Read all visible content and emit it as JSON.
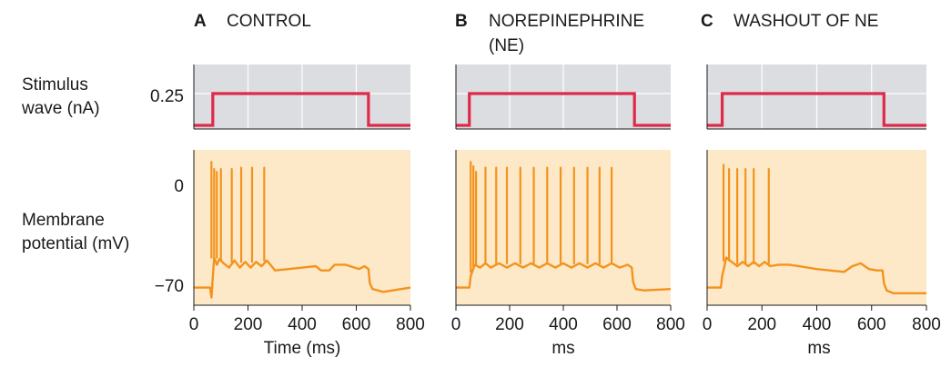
{
  "labels": {
    "stimulus_row": [
      "Stimulus",
      "wave (nA)"
    ],
    "membrane_row": [
      "Membrane",
      "potential (mV)"
    ],
    "stim_tick": "0.25",
    "mv_ticks": [
      "0",
      "−70"
    ]
  },
  "colors": {
    "stim_bg": "#dcdde0",
    "vm_bg": "#fde9c8",
    "stimulus": "#e0284a",
    "membrane": "#f3931d",
    "grid": "#ffffff",
    "text": "#1a1a1a"
  },
  "chart_data": [
    {
      "type": "line",
      "letter": "A",
      "title": "CONTROL",
      "xlabel": "Time (ms)",
      "ylabel": "Stimulus wave (nA)",
      "xlim": [
        0,
        800
      ],
      "xticks": [
        "0",
        "200",
        "400",
        "600",
        "800"
      ],
      "grid": true,
      "series": [
        {
          "x": [
            0,
            70,
            70,
            645,
            645,
            800
          ],
          "y": [
            0,
            0,
            0.25,
            0.25,
            0,
            0
          ]
        }
      ]
    },
    {
      "type": "line",
      "letter": "B",
      "title": "NOREPINEPHRINE",
      "title_line2": "(NE)",
      "xlabel": "ms",
      "ylabel": "Stimulus wave (nA)",
      "xlim": [
        0,
        800
      ],
      "xticks": [
        "0",
        "200",
        "400",
        "600",
        "800"
      ],
      "grid": true,
      "series": [
        {
          "x": [
            0,
            50,
            50,
            665,
            665,
            800
          ],
          "y": [
            0,
            0,
            0.25,
            0.25,
            0,
            0
          ]
        }
      ]
    },
    {
      "type": "line",
      "letter": "C",
      "title": "WASHOUT OF NE",
      "xlabel": "ms",
      "ylabel": "Stimulus wave (nA)",
      "xlim": [
        0,
        800
      ],
      "xticks": [
        "0",
        "200",
        "400",
        "600",
        "800"
      ],
      "grid": true,
      "series": [
        {
          "x": [
            0,
            55,
            55,
            645,
            645,
            800
          ],
          "y": [
            0,
            0,
            0.25,
            0.25,
            0,
            0
          ]
        }
      ]
    },
    {
      "type": "line",
      "panel": "A",
      "ylabel": "Membrane potential (mV)",
      "xlim": [
        0,
        800
      ],
      "yticks": [
        0,
        -70
      ],
      "grid": false,
      "series": [
        {
          "x": [
            0,
            60,
            65,
            75,
            85,
            95,
            110,
            130,
            150,
            170,
            190,
            210,
            230,
            250,
            270,
            300,
            350,
            400,
            450,
            470,
            500,
            520,
            560,
            610,
            630,
            645,
            650,
            660,
            700,
            800
          ],
          "y": [
            -71,
            -71,
            -78,
            -50,
            -55,
            -51,
            -54,
            -57,
            -52,
            -57,
            -53,
            -57,
            -53,
            -56,
            -52,
            -59,
            -58,
            -57,
            -56,
            -59,
            -59,
            -55,
            -55,
            -58,
            -56,
            -58,
            -68,
            -72,
            -74,
            -71
          ]
        }
      ],
      "spikes": [
        {
          "x": 65,
          "peak": 17,
          "base": -50
        },
        {
          "x": 75,
          "peak": 12,
          "base": -51
        },
        {
          "x": 85,
          "peak": 10,
          "base": -50
        },
        {
          "x": 100,
          "peak": 12,
          "base": -52
        },
        {
          "x": 140,
          "peak": 12,
          "base": -53
        },
        {
          "x": 175,
          "peak": 13,
          "base": -53
        },
        {
          "x": 215,
          "peak": 13,
          "base": -53
        },
        {
          "x": 260,
          "peak": 13,
          "base": -52
        }
      ]
    },
    {
      "type": "line",
      "panel": "B",
      "ylabel": "Membrane potential (mV)",
      "xlim": [
        0,
        800
      ],
      "yticks": [
        0,
        -70
      ],
      "grid": false,
      "series": [
        {
          "x": [
            0,
            50,
            55,
            70,
            90,
            110,
            130,
            160,
            190,
            220,
            250,
            280,
            310,
            340,
            370,
            400,
            430,
            460,
            490,
            520,
            550,
            580,
            610,
            640,
            655,
            660,
            670,
            700,
            800
          ],
          "y": [
            -71,
            -71,
            -63,
            -55,
            -57,
            -54,
            -57,
            -54,
            -57,
            -54,
            -57,
            -54,
            -57,
            -54,
            -57,
            -54,
            -57,
            -54,
            -57,
            -54,
            -57,
            -54,
            -57,
            -55,
            -57,
            -67,
            -72,
            -73,
            -72
          ]
        }
      ],
      "spikes": [
        {
          "x": 55,
          "peak": 17,
          "base": -60
        },
        {
          "x": 65,
          "peak": 14,
          "base": -56
        },
        {
          "x": 75,
          "peak": 10,
          "base": -55
        },
        {
          "x": 110,
          "peak": 13,
          "base": -54
        },
        {
          "x": 150,
          "peak": 13,
          "base": -54
        },
        {
          "x": 190,
          "peak": 13,
          "base": -54
        },
        {
          "x": 240,
          "peak": 13,
          "base": -54
        },
        {
          "x": 290,
          "peak": 13,
          "base": -54
        },
        {
          "x": 340,
          "peak": 13,
          "base": -54
        },
        {
          "x": 390,
          "peak": 13,
          "base": -54
        },
        {
          "x": 440,
          "peak": 13,
          "base": -54
        },
        {
          "x": 490,
          "peak": 13,
          "base": -54
        },
        {
          "x": 535,
          "peak": 13,
          "base": -54
        },
        {
          "x": 580,
          "peak": 13,
          "base": -54
        }
      ]
    },
    {
      "type": "line",
      "panel": "C",
      "ylabel": "Membrane potential (mV)",
      "xlim": [
        0,
        800
      ],
      "yticks": [
        0,
        -70
      ],
      "grid": false,
      "series": [
        {
          "x": [
            0,
            50,
            55,
            70,
            90,
            110,
            130,
            150,
            170,
            190,
            210,
            230,
            260,
            300,
            400,
            500,
            530,
            560,
            590,
            620,
            640,
            645,
            655,
            680,
            720,
            800
          ],
          "y": [
            -71,
            -71,
            -63,
            -50,
            -53,
            -56,
            -53,
            -56,
            -53,
            -56,
            -53,
            -56,
            -55,
            -55,
            -58,
            -60,
            -56,
            -54,
            -58,
            -59,
            -59,
            -68,
            -73,
            -75,
            -75,
            -75
          ]
        }
      ],
      "spikes": [
        {
          "x": 60,
          "peak": 15,
          "base": -52
        },
        {
          "x": 80,
          "peak": 12,
          "base": -52
        },
        {
          "x": 110,
          "peak": 12,
          "base": -54
        },
        {
          "x": 140,
          "peak": 12,
          "base": -54
        },
        {
          "x": 170,
          "peak": 12,
          "base": -54
        },
        {
          "x": 225,
          "peak": 12,
          "base": -54
        }
      ]
    }
  ]
}
